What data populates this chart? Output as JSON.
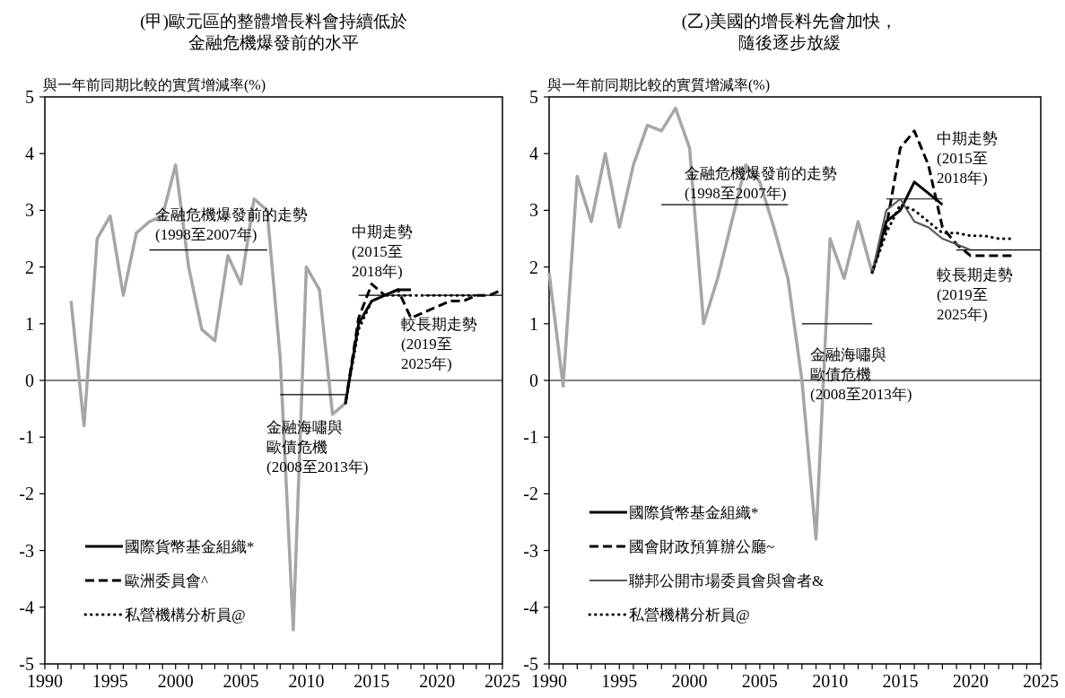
{
  "chart_data": [
    {
      "type": "line",
      "title": "(甲)歐元區的整體增長料會持續低於金融危機爆發前的水平",
      "ylabel": "與一年前同期比較的實質增減率(%)",
      "xlim": [
        1990,
        2025
      ],
      "ylim": [
        -5,
        5
      ],
      "xticks": [
        1990,
        {
          "value": 1991,
          "label": null
        },
        {
          "value": 1992,
          "label": null
        },
        {
          "value": 1993,
          "label": null
        },
        {
          "value": 1994,
          "label": null
        },
        1995,
        {
          "value": 1996,
          "label": null
        },
        {
          "value": 1997,
          "label": null
        },
        {
          "value": 1998,
          "label": null
        },
        {
          "value": 1999,
          "label": null
        },
        2000,
        {
          "value": 2001,
          "label": null
        },
        {
          "value": 2002,
          "label": null
        },
        {
          "value": 2003,
          "label": null
        },
        {
          "value": 2004,
          "label": null
        },
        2005,
        {
          "value": 2006,
          "label": null
        },
        {
          "value": 2007,
          "label": null
        },
        {
          "value": 2008,
          "label": null
        },
        {
          "value": 2009,
          "label": null
        },
        2010,
        {
          "value": 2011,
          "label": null
        },
        {
          "value": 2012,
          "label": null
        },
        {
          "value": 2013,
          "label": null
        },
        {
          "value": 2014,
          "label": null
        },
        2015,
        {
          "value": 2016,
          "label": null
        },
        {
          "value": 2017,
          "label": null
        },
        {
          "value": 2018,
          "label": null
        },
        {
          "value": 2019,
          "label": null
        },
        2020,
        {
          "value": 2021,
          "label": null
        },
        {
          "value": 2022,
          "label": null
        },
        {
          "value": 2023,
          "label": null
        },
        {
          "value": 2024,
          "label": null
        },
        2025
      ],
      "yticks": [
        -5,
        -4,
        -3,
        -2,
        -1,
        0,
        1,
        2,
        3,
        4,
        5
      ],
      "grid": false,
      "legend": "bottom left",
      "ref_lines": [
        {
          "axis": "y",
          "value": 0,
          "color": "#000000"
        }
      ],
      "series": [
        {
          "color": "#a6a6a6",
          "line_style": "solid",
          "x": [
            1992,
            1993,
            1994,
            1995,
            1996,
            1997,
            1998,
            1999,
            2000,
            2001,
            2002,
            2003,
            2004,
            2005,
            2006,
            2007,
            2008,
            2009,
            2010,
            2011,
            2012,
            2013
          ],
          "values": [
            1.4,
            -0.8,
            2.5,
            2.9,
            1.5,
            2.6,
            2.8,
            2.9,
            3.8,
            2.0,
            0.9,
            0.7,
            2.2,
            1.7,
            3.2,
            3.0,
            0.4,
            -4.4,
            2.0,
            1.6,
            -0.6,
            -0.4
          ]
        },
        {
          "color": "#000000",
          "line_style": "solid",
          "x": [
            1998,
            2007
          ],
          "values": [
            2.3,
            2.3
          ]
        },
        {
          "color": "#000000",
          "line_style": "solid",
          "x": [
            2008,
            2013
          ],
          "values": [
            -0.25,
            -0.25
          ]
        },
        {
          "color": "#000000",
          "line_style": "solid",
          "x": [
            2014,
            2018
          ],
          "values": [
            1.5,
            1.5
          ]
        },
        {
          "color": "#000000",
          "line_style": "solid",
          "x": [
            2019,
            2025
          ],
          "values": [
            1.5,
            1.5
          ]
        },
        {
          "name": "國際貨幣基金組織*",
          "color": "#000000",
          "line_style": "solid",
          "x": [
            2013,
            2014,
            2015,
            2016,
            2017,
            2018
          ],
          "values": [
            -0.4,
            1.0,
            1.4,
            1.5,
            1.6,
            1.6
          ]
        },
        {
          "name": "歐洲委員會^",
          "color": "#000000",
          "line_style": "dashed",
          "x": [
            2013,
            2014,
            2015,
            2016,
            2017,
            2018,
            2019,
            2020,
            2021,
            2022,
            2023,
            2024,
            2025
          ],
          "values": [
            -0.4,
            1.1,
            1.7,
            1.5,
            1.6,
            1.1,
            1.2,
            1.3,
            1.4,
            1.4,
            1.5,
            1.5,
            1.6
          ]
        },
        {
          "name": "私營機構分析員@",
          "color": "#000000",
          "line_style": "dotted",
          "x": [
            2013,
            2014,
            2015,
            2016,
            2017,
            2018,
            2019,
            2020,
            2021,
            2022,
            2023
          ],
          "values": [
            -0.4,
            0.9,
            1.4,
            1.5,
            1.5,
            1.5,
            1.5,
            1.5,
            1.5,
            1.5,
            1.5
          ]
        }
      ],
      "annotations": [
        "金融危機爆發前的走勢(1998至2007年)",
        "中期走勢(2015至2018年)",
        "較長期走勢(2019至2025年)",
        "金融海嘯與歐債危機(2008至2013年)"
      ]
    },
    {
      "type": "line",
      "title": "(乙)美國的增長料先會加快，隨後逐步放緩",
      "ylabel": "與一年前同期比較的實質增減率(%)",
      "xlim": [
        1990,
        2025
      ],
      "ylim": [
        -5,
        5
      ],
      "xticks": [
        1990,
        {
          "value": 1991,
          "label": null
        },
        {
          "value": 1992,
          "label": null
        },
        {
          "value": 1993,
          "label": null
        },
        {
          "value": 1994,
          "label": null
        },
        1995,
        {
          "value": 1996,
          "label": null
        },
        {
          "value": 1997,
          "label": null
        },
        {
          "value": 1998,
          "label": null
        },
        {
          "value": 1999,
          "label": null
        },
        2000,
        {
          "value": 2001,
          "label": null
        },
        {
          "value": 2002,
          "label": null
        },
        {
          "value": 2003,
          "label": null
        },
        {
          "value": 2004,
          "label": null
        },
        2005,
        {
          "value": 2006,
          "label": null
        },
        {
          "value": 2007,
          "label": null
        },
        {
          "value": 2008,
          "label": null
        },
        {
          "value": 2009,
          "label": null
        },
        2010,
        {
          "value": 2011,
          "label": null
        },
        {
          "value": 2012,
          "label": null
        },
        {
          "value": 2013,
          "label": null
        },
        {
          "value": 2014,
          "label": null
        },
        2015,
        {
          "value": 2016,
          "label": null
        },
        {
          "value": 2017,
          "label": null
        },
        {
          "value": 2018,
          "label": null
        },
        {
          "value": 2019,
          "label": null
        },
        2020,
        {
          "value": 2021,
          "label": null
        },
        {
          "value": 2022,
          "label": null
        },
        {
          "value": 2023,
          "label": null
        },
        {
          "value": 2024,
          "label": null
        },
        2025
      ],
      "yticks": [
        -5,
        -4,
        -3,
        -2,
        -1,
        0,
        1,
        2,
        3,
        4,
        5
      ],
      "grid": false,
      "legend": "bottom left",
      "ref_lines": [
        {
          "axis": "y",
          "value": 0,
          "color": "#000000"
        }
      ],
      "series": [
        {
          "color": "#a6a6a6",
          "line_style": "solid",
          "x": [
            1990,
            1991,
            1992,
            1993,
            1994,
            1995,
            1996,
            1997,
            1998,
            1999,
            2000,
            2001,
            2002,
            2003,
            2004,
            2005,
            2006,
            2007,
            2008,
            2009,
            2010,
            2011,
            2012,
            2013
          ],
          "values": [
            1.9,
            -0.1,
            3.6,
            2.8,
            4.0,
            2.7,
            3.8,
            4.5,
            4.4,
            4.8,
            4.1,
            1.0,
            1.8,
            2.8,
            3.8,
            3.5,
            2.7,
            1.8,
            0.0,
            -2.8,
            2.5,
            1.8,
            2.8,
            1.9
          ]
        },
        {
          "color": "#000000",
          "line_style": "solid",
          "x": [
            1998,
            2007
          ],
          "values": [
            3.1,
            3.1
          ]
        },
        {
          "color": "#000000",
          "line_style": "solid",
          "x": [
            2008,
            2013
          ],
          "values": [
            1.0,
            1.0
          ]
        },
        {
          "color": "#000000",
          "line_style": "solid",
          "x": [
            2014,
            2018
          ],
          "values": [
            3.2,
            3.2
          ]
        },
        {
          "color": "#000000",
          "line_style": "solid",
          "x": [
            2019,
            2025
          ],
          "values": [
            2.3,
            2.3
          ]
        },
        {
          "name": "國際貨幣基金組織*",
          "color": "#000000",
          "line_style": "solid",
          "x": [
            2013,
            2014,
            2015,
            2016,
            2017,
            2018
          ],
          "values": [
            1.9,
            2.8,
            3.0,
            3.5,
            3.3,
            3.1
          ]
        },
        {
          "name": "國會財政預算辦公廳~",
          "color": "#000000",
          "line_style": "dashed",
          "x": [
            2013,
            2014,
            2015,
            2016,
            2017,
            2018,
            2019,
            2020,
            2021,
            2022,
            2023
          ],
          "values": [
            1.9,
            2.7,
            4.1,
            4.4,
            3.8,
            2.7,
            2.4,
            2.2,
            2.2,
            2.2,
            2.2
          ]
        },
        {
          "name": "聯邦公開市場委員會與會者&",
          "color": "#595959",
          "line_style": "solid",
          "x": [
            2013,
            2014,
            2015,
            2016,
            2017,
            2018,
            2019,
            2020
          ],
          "values": [
            1.9,
            3.0,
            3.2,
            2.8,
            2.7,
            2.5,
            2.4,
            2.3
          ]
        },
        {
          "name": "私營機構分析員@",
          "color": "#000000",
          "line_style": "dotted",
          "x": [
            2013,
            2014,
            2015,
            2016,
            2017,
            2018,
            2019,
            2020,
            2021,
            2022,
            2023
          ],
          "values": [
            1.9,
            2.6,
            3.1,
            3.0,
            2.8,
            2.6,
            2.6,
            2.55,
            2.55,
            2.5,
            2.5
          ]
        }
      ],
      "annotations": [
        "金融危機爆發前的走勢(1998至2007年)",
        "中期走勢(2015至2018年)",
        "較長期走勢(2019至2025年)",
        "金融海嘯與歐債危機(2008至2013年)"
      ]
    }
  ]
}
